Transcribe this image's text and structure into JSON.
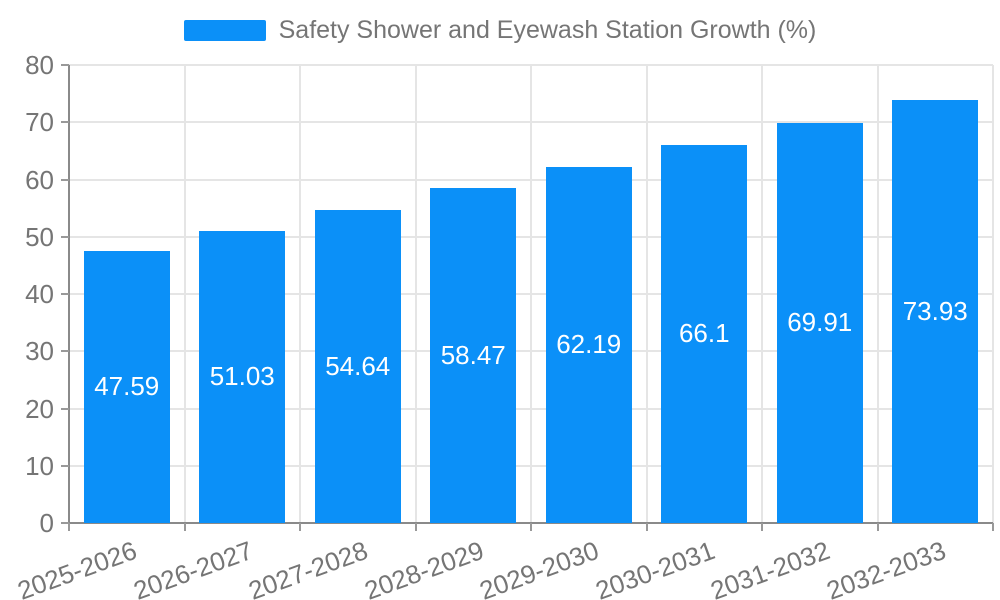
{
  "legend": {
    "items": [
      {
        "label": "Safety Shower and Eyewash Station Growth (%)",
        "color": "#0b90f8"
      }
    ]
  },
  "chart_data": {
    "type": "bar",
    "title": "Safety Shower and Eyewash Station Growth (%)",
    "categories": [
      "2025-2026",
      "2026-2027",
      "2027-2028",
      "2028-2029",
      "2029-2030",
      "2030-2031",
      "2031-2032",
      "2032-2033"
    ],
    "values": [
      47.59,
      51.03,
      54.64,
      58.47,
      62.19,
      66.1,
      69.91,
      73.93
    ],
    "value_labels": [
      "47.59",
      "51.03",
      "54.64",
      "58.47",
      "62.19",
      "66.1",
      "69.91",
      "73.93"
    ],
    "xlabel": "",
    "ylabel": "",
    "ylim": [
      0,
      80
    ],
    "y_ticks": [
      0,
      10,
      20,
      30,
      40,
      50,
      60,
      70,
      80
    ],
    "y_tick_labels": [
      "0",
      "10",
      "20",
      "30",
      "40",
      "50",
      "60",
      "70",
      "80"
    ],
    "grid": true,
    "legend_position": "top",
    "x_label_rotation_deg": -20,
    "bar_color": "#0b90f8",
    "value_label_color": "#ffffff",
    "axis_text_color": "#757575",
    "gridline_color": "#e5e5e5",
    "axis_line_color": "#8a8a8a"
  }
}
